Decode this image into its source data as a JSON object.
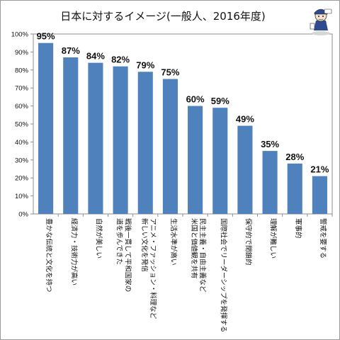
{
  "chart_data": {
    "type": "bar",
    "title": "日本に対するイメージ(一般人、2016年度)",
    "xlabel": "",
    "ylabel": "",
    "ylim": [
      0,
      100
    ],
    "yticks": [
      "0%",
      "10%",
      "20%",
      "30%",
      "40%",
      "50%",
      "60%",
      "70%",
      "80%",
      "90%",
      "100%"
    ],
    "grid": false,
    "legend": "none",
    "bar_color": "#4f81bd",
    "categories": [
      [
        "豊かな伝統と文化を持つ"
      ],
      [
        "経済力・技術力が高い"
      ],
      [
        "自然が美しい"
      ],
      [
        "戦後一貫して平和国家の",
        "道を歩んできた"
      ],
      [
        "アニメ・ファッション・料理など",
        "新しい文化を発信"
      ],
      [
        "生活水準が高い"
      ],
      [
        "民主主義・自由主義など",
        "米国と価値観を共有"
      ],
      [
        "国際社会でリーダーシップを発揮する"
      ],
      [
        "保守的で閉鎖的"
      ],
      [
        "理解が難しい"
      ],
      [
        "軍事的"
      ],
      [
        "警戒を要する"
      ]
    ],
    "values": [
      95,
      87,
      84,
      82,
      79,
      75,
      60,
      59,
      49,
      35,
      28,
      21
    ],
    "data_labels": [
      "95%",
      "87%",
      "84%",
      "82%",
      "79%",
      "75%",
      "60%",
      "59%",
      "49%",
      "35%",
      "28%",
      "21%"
    ]
  },
  "mascot": {
    "icon": "mascot-character-icon"
  }
}
